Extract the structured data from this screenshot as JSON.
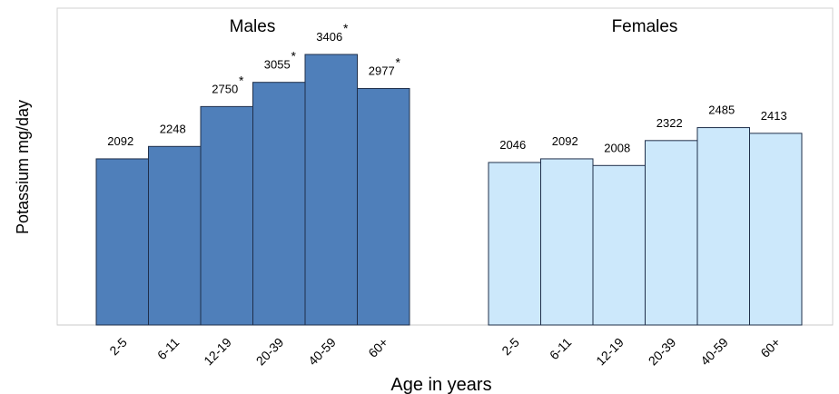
{
  "chart_data": {
    "type": "bar",
    "ylabel": "Potassium mg/day",
    "xlabel": "Age in years",
    "ylim": [
      0,
      3800
    ],
    "grid": false,
    "groups": [
      {
        "name": "Males",
        "color": "#4f7fba",
        "categories": [
          "2-5",
          "6-11",
          "12-19",
          "20-39",
          "40-59",
          "60+"
        ],
        "values": [
          2092,
          2248,
          2750,
          3055,
          3406,
          2977
        ],
        "labels": [
          "2092",
          "2248",
          "2750",
          "3055",
          "3406",
          "2977"
        ],
        "asterisk": [
          false,
          false,
          true,
          true,
          true,
          true
        ]
      },
      {
        "name": "Females",
        "color": "#cce8fb",
        "categories": [
          "2-5",
          "6-11",
          "12-19",
          "20-39",
          "40-59",
          "60+"
        ],
        "values": [
          2046,
          2092,
          2008,
          2322,
          2485,
          2413
        ],
        "labels": [
          "2046",
          "2092",
          "2008",
          "2322",
          "2485",
          "2413"
        ],
        "asterisk": [
          false,
          false,
          false,
          false,
          false,
          false
        ]
      }
    ],
    "asterisk_symbol": "*"
  }
}
